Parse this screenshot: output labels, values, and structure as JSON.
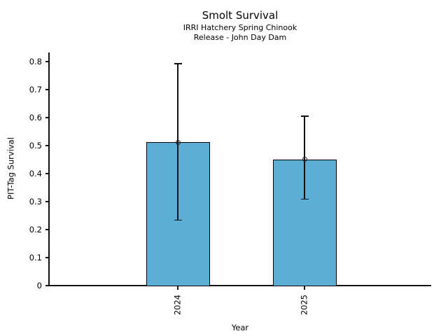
{
  "chart_data": {
    "type": "bar",
    "title": "Smolt Survival",
    "subtitle_line1": "IRRI Hatchery Spring Chinook",
    "subtitle_line2": "Release - John Day Dam",
    "xlabel": "Year",
    "ylabel": "PIT-Tag Survival",
    "categories": [
      "2024",
      "2025"
    ],
    "values": [
      0.512,
      0.451
    ],
    "error_low": [
      0.234,
      0.308
    ],
    "error_high": [
      0.792,
      0.605
    ],
    "ytick_labels": [
      "0",
      "0.1",
      "0.2",
      "0.3",
      "0.4",
      "0.5",
      "0.6",
      "0.7",
      "0.8"
    ],
    "ylim": [
      0,
      0.83
    ],
    "grid": false,
    "legend": "none",
    "bar_color": "#5CAED6",
    "bar_edge_color": "#000000",
    "error_bar_color": "#111111",
    "marker_shape": "open-circle"
  }
}
